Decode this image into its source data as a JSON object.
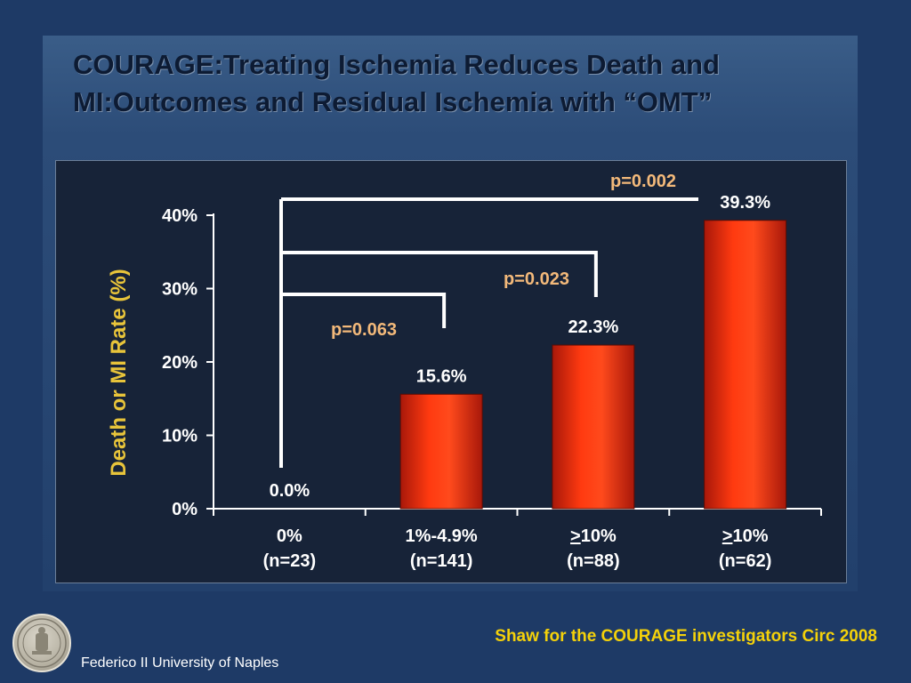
{
  "slide": {
    "title_line1": "COURAGE:Treating Ischemia Reduces Death and",
    "title_line2": "MI:Outcomes and Residual Ischemia with “OMT”",
    "footer_left": "Federico II University of Naples",
    "footer_right": "Shaw for the COURAGE investigators Circ 2008",
    "seal_icon": "university-seal-icon",
    "colors": {
      "background": "#1e3a66",
      "bar": "#ff3a10",
      "bar_dark": "#a8180a",
      "ylabel": "#e8c43a",
      "pvalue": "#f3b97a",
      "footer_citation": "#f4d10a"
    }
  },
  "chart_data": {
    "type": "bar",
    "title": "",
    "xlabel": "",
    "ylabel": "Death or MI Rate (%)",
    "ylim": [
      0,
      40
    ],
    "yticks": [
      0,
      10,
      20,
      30,
      40
    ],
    "ytick_labels": [
      "0%",
      "10%",
      "20%",
      "30%",
      "40%"
    ],
    "grid": false,
    "categories": [
      {
        "line1": "0%",
        "line1_prefix": "",
        "line2": "(n=23)"
      },
      {
        "line1": "1%-4.9%",
        "line1_prefix": "",
        "line2": "(n=141)"
      },
      {
        "line1": "10%",
        "line1_prefix": ">",
        "line2": "(n=88)"
      },
      {
        "line1": "10%",
        "line1_prefix": ">",
        "line2": "(n=62)"
      }
    ],
    "values": [
      0.0,
      15.6,
      22.3,
      39.3
    ],
    "value_labels": [
      "0.0%",
      "15.6%",
      "22.3%",
      "39.3%"
    ],
    "comparisons": [
      {
        "from": 0,
        "to": 1,
        "label": "p=0.063"
      },
      {
        "from": 0,
        "to": 2,
        "label": "p=0.023"
      },
      {
        "from": 0,
        "to": 3,
        "label": "p=0.002"
      }
    ]
  }
}
